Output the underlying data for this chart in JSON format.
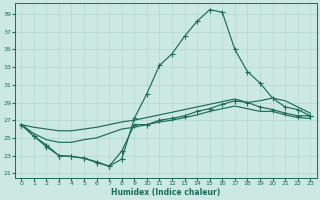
{
  "xlabel": "Humidex (Indice chaleur)",
  "bg_color": "#cce8e3",
  "line_color": "#1a6b5a",
  "grid_color": "#aad4cc",
  "xlim": [
    -0.5,
    23.5
  ],
  "ylim": [
    20.5,
    40.2
  ],
  "xticks": [
    0,
    1,
    2,
    3,
    4,
    5,
    6,
    7,
    8,
    9,
    10,
    11,
    12,
    13,
    14,
    15,
    16,
    17,
    18,
    19,
    20,
    21,
    22,
    23
  ],
  "yticks": [
    21,
    23,
    25,
    27,
    29,
    31,
    33,
    35,
    37,
    39
  ],
  "peak_x": [
    0,
    1,
    2,
    3,
    4,
    5,
    6,
    7,
    8,
    9,
    10,
    11,
    12,
    13,
    14,
    15,
    16,
    17,
    18,
    19,
    20,
    21,
    22,
    23
  ],
  "peak_y": [
    26.5,
    25.2,
    24.2,
    23.0,
    22.9,
    22.7,
    22.2,
    21.8,
    22.6,
    27.2,
    30.0,
    33.2,
    34.5,
    36.5,
    38.2,
    39.5,
    39.2,
    35.0,
    32.5,
    31.2,
    29.5,
    28.5,
    28.2,
    27.5
  ],
  "upper_x": [
    0,
    1,
    2,
    3,
    4,
    5,
    6,
    7,
    8,
    9,
    10,
    11,
    12,
    13,
    14,
    15,
    16,
    17,
    18,
    19,
    20,
    21,
    22,
    23
  ],
  "upper_y": [
    26.5,
    26.2,
    26.0,
    25.8,
    25.8,
    26.0,
    26.2,
    26.5,
    26.8,
    27.0,
    27.3,
    27.6,
    27.9,
    28.2,
    28.5,
    28.8,
    29.1,
    29.4,
    29.0,
    29.2,
    29.5,
    29.2,
    28.5,
    27.8
  ],
  "lower_x": [
    0,
    1,
    2,
    3,
    4,
    5,
    6,
    7,
    8,
    9,
    10,
    11,
    12,
    13,
    14,
    15,
    16,
    17,
    18,
    19,
    20,
    21,
    22,
    23
  ],
  "lower_y": [
    26.5,
    25.5,
    24.8,
    24.5,
    24.5,
    24.8,
    25.0,
    25.5,
    26.0,
    26.2,
    26.5,
    26.8,
    27.0,
    27.3,
    27.6,
    28.0,
    28.3,
    28.6,
    28.3,
    28.0,
    28.0,
    27.6,
    27.3,
    27.2
  ],
  "dip_x": [
    0,
    1,
    2,
    3,
    4,
    5,
    6,
    7,
    8,
    9,
    10,
    11,
    12,
    13,
    14,
    15,
    16,
    17,
    18,
    19,
    20,
    21,
    22,
    23
  ],
  "dip_y": [
    26.5,
    25.2,
    24.0,
    23.0,
    22.9,
    22.7,
    22.3,
    21.8,
    23.5,
    26.5,
    26.5,
    27.0,
    27.2,
    27.5,
    28.0,
    28.3,
    28.8,
    29.2,
    29.0,
    28.5,
    28.2,
    27.8,
    27.5,
    27.5
  ]
}
